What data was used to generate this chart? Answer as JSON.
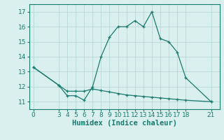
{
  "curve1_x": [
    0,
    3,
    4,
    5,
    6,
    7,
    8,
    9,
    10,
    11,
    12,
    13,
    14,
    15,
    16,
    17,
    18,
    21
  ],
  "curve1_y": [
    13.3,
    12.1,
    11.4,
    11.4,
    11.1,
    12.0,
    14.0,
    15.3,
    16.0,
    16.0,
    16.4,
    16.0,
    17.0,
    15.2,
    15.0,
    14.3,
    12.6,
    11.0
  ],
  "curve2_x": [
    0,
    3,
    4,
    5,
    6,
    7,
    8,
    9,
    10,
    11,
    12,
    13,
    14,
    15,
    16,
    17,
    18,
    21
  ],
  "curve2_y": [
    13.3,
    12.1,
    11.7,
    11.7,
    11.7,
    11.85,
    11.75,
    11.65,
    11.55,
    11.45,
    11.4,
    11.35,
    11.3,
    11.25,
    11.2,
    11.15,
    11.1,
    11.0
  ],
  "line_color": "#1a7a6e",
  "bg_color": "#d9f0ee",
  "grid_color": "#b8d8d4",
  "xlabel": "Humidex (Indice chaleur)",
  "ylim": [
    10.5,
    17.5
  ],
  "xlim": [
    -0.5,
    22
  ],
  "xticks": [
    0,
    3,
    4,
    5,
    6,
    7,
    8,
    9,
    10,
    11,
    12,
    13,
    14,
    15,
    16,
    17,
    18,
    21
  ],
  "yticks": [
    11,
    12,
    13,
    14,
    15,
    16,
    17
  ],
  "xlabel_fontsize": 7.5,
  "tick_fontsize": 6.5
}
